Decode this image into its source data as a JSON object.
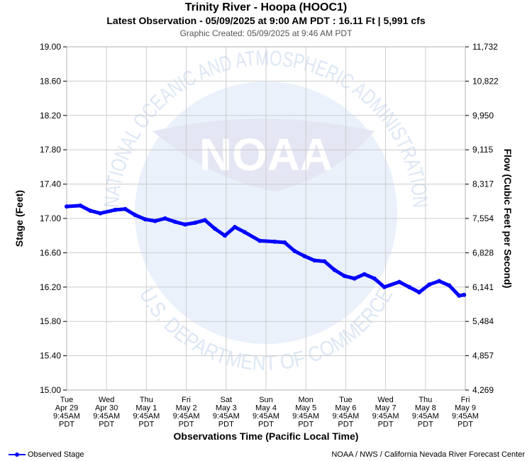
{
  "header": {
    "title": "Trinity River - Hoopa (HOOC1)",
    "subtitle": "Latest Observation - 05/09/2025 at 9:00 AM PDT : 16.11 Ft | 5,991 cfs",
    "created": "Graphic Created: 05/09/2025 at 9:46 AM PDT"
  },
  "watermark": {
    "logo_text": "NOAA",
    "ring_top": "NATIONAL OCEANIC AND ATMOSPHERIC ADMINISTRATION",
    "ring_bottom": "U.S. DEPARTMENT OF COMMERCE"
  },
  "footer": {
    "legend_label": "Observed Stage",
    "credit": "NOAA / NWS / California Nevada River Forecast Center"
  },
  "colors": {
    "series": "#0000ff",
    "grid": "#cccccc",
    "watermark": "#dde7f5"
  },
  "chart_data": {
    "type": "line",
    "title": "Trinity River - Hoopa (HOOC1)",
    "xlabel": "Observations Time (Pacific Local Time)",
    "ylabel": "Stage (Feet)",
    "y2label": "Flow (Cubic Feet per Second)",
    "ylim": [
      15.0,
      19.0
    ],
    "grid": true,
    "legend": "bottom-left",
    "yticks": [
      "19.00",
      "18.60",
      "18.20",
      "17.80",
      "17.40",
      "17.00",
      "16.60",
      "16.20",
      "15.80",
      "15.40",
      "15.00"
    ],
    "y2ticks": [
      "11,732",
      "10,822",
      "9,950",
      "9,115",
      "8,317",
      "7,554",
      "6,828",
      "6,141",
      "5,484",
      "4,857",
      "4,269"
    ],
    "xticks": [
      [
        "Tue",
        "Apr 29",
        "9:45AM",
        "PDT"
      ],
      [
        "Wed",
        "Apr 30",
        "9:45AM",
        "PDT"
      ],
      [
        "Thu",
        "May 1",
        "9:45AM",
        "PDT"
      ],
      [
        "Fri",
        "May 2",
        "9:45AM",
        "PDT"
      ],
      [
        "Sat",
        "May 3",
        "9:45AM",
        "PDT"
      ],
      [
        "Sun",
        "May 4",
        "9:45AM",
        "PDT"
      ],
      [
        "Mon",
        "May 5",
        "9:45AM",
        "PDT"
      ],
      [
        "Tue",
        "May 6",
        "9:45AM",
        "PDT"
      ],
      [
        "Wed",
        "May 7",
        "9:45AM",
        "PDT"
      ],
      [
        "Thu",
        "May 8",
        "9:45AM",
        "PDT"
      ],
      [
        "Fri",
        "May 9",
        "9:45AM",
        "PDT"
      ]
    ],
    "xlim": [
      "04/29 9:45AM",
      "05/09 9:45AM"
    ],
    "series": [
      {
        "name": "Observed Stage",
        "x": [
          "04/29 9:45AM",
          "04/29 6:00PM",
          "04/30 0:00AM",
          "04/30 6:00AM",
          "04/30 3:00PM",
          "04/30 9:00PM",
          "05/01 3:00AM",
          "05/01 9:00AM",
          "05/01 3:00PM",
          "05/01 9:00PM",
          "05/02 3:00AM",
          "05/02 9:00AM",
          "05/02 3:00PM",
          "05/02 9:00PM",
          "05/03 3:00AM",
          "05/03 9:00AM",
          "05/03 3:00PM",
          "05/03 9:00PM",
          "05/04 6:00AM",
          "05/04 3:00PM",
          "05/04 9:00PM",
          "05/05 3:00AM",
          "05/05 9:00AM",
          "05/05 3:00PM",
          "05/05 9:00PM",
          "05/06 3:00AM",
          "05/06 9:00AM",
          "05/06 3:00PM",
          "05/06 9:00PM",
          "05/07 3:00AM",
          "05/07 9:00AM",
          "05/07 6:00PM",
          "05/08 0:00AM",
          "05/08 6:00AM",
          "05/08 12:00PM",
          "05/08 6:00PM",
          "05/09 0:00AM",
          "05/09 6:00AM",
          "05/09 9:00AM"
        ],
        "values": [
          17.14,
          17.15,
          17.09,
          17.06,
          17.1,
          17.11,
          17.04,
          16.99,
          16.97,
          17.0,
          16.96,
          16.93,
          16.95,
          16.98,
          16.88,
          16.8,
          16.9,
          16.84,
          16.74,
          16.73,
          16.72,
          16.62,
          16.56,
          16.51,
          16.5,
          16.4,
          16.33,
          16.3,
          16.35,
          16.3,
          16.2,
          16.26,
          16.2,
          16.14,
          16.23,
          16.27,
          16.22,
          16.1,
          16.11
        ]
      }
    ]
  }
}
